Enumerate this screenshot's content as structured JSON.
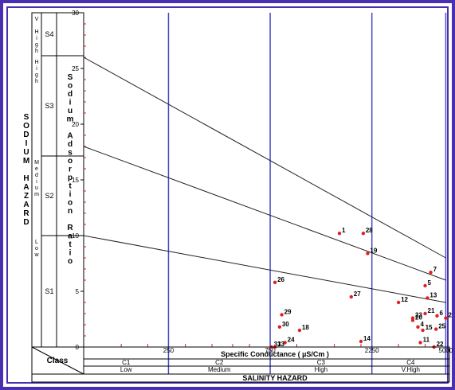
{
  "chart_data": {
    "type": "scatter",
    "title": "",
    "xlabel": "Specific Conductance ( µS/Cm )",
    "ylabel": "Sodium Adsorption Ratio",
    "x_scale": "log",
    "x_ticks": [
      250,
      750,
      2250,
      5000
    ],
    "y_ticks": [
      0,
      5,
      10,
      15,
      20,
      25,
      30
    ],
    "ylim": [
      0,
      30
    ],
    "left_axis_title": "SODIUM HAZARD",
    "bottom_axis_title": "SALINITY HAZARD",
    "class_label": "Class",
    "sodium_classes": [
      {
        "code": "S1",
        "name": "Low"
      },
      {
        "code": "S2",
        "name": "Medium"
      },
      {
        "code": "S3",
        "name": "High"
      },
      {
        "code": "S4",
        "name": "V High"
      }
    ],
    "salinity_classes": [
      {
        "code": "C1",
        "name": "Low"
      },
      {
        "code": "C2",
        "name": "Medium"
      },
      {
        "code": "C3",
        "name": "High"
      },
      {
        "code": "C4",
        "name": "V.High"
      }
    ],
    "class_boundaries": [
      {
        "from": [
          100,
          10
        ],
        "to": [
          5000,
          4
        ]
      },
      {
        "from": [
          100,
          18
        ],
        "to": [
          5000,
          6
        ]
      },
      {
        "from": [
          100,
          26
        ],
        "to": [
          5000,
          8
        ]
      }
    ],
    "samples": [
      {
        "label": "1",
        "x": 1585,
        "y": 10.2
      },
      {
        "label": "2",
        "x": 5000,
        "y": 2.6
      },
      {
        "label": "4",
        "x": 3700,
        "y": 1.8
      },
      {
        "label": "5",
        "x": 4000,
        "y": 5.5
      },
      {
        "label": "6",
        "x": 4550,
        "y": 2.8
      },
      {
        "label": "7",
        "x": 4250,
        "y": 6.7
      },
      {
        "label": "11",
        "x": 3800,
        "y": 0.4
      },
      {
        "label": "12",
        "x": 3000,
        "y": 4.0
      },
      {
        "label": "13",
        "x": 4100,
        "y": 4.4
      },
      {
        "label": "14",
        "x": 2000,
        "y": 0.5
      },
      {
        "label": "15",
        "x": 3900,
        "y": 1.5
      },
      {
        "label": "18",
        "x": 1030,
        "y": 1.5
      },
      {
        "label": "19",
        "x": 2150,
        "y": 8.4
      },
      {
        "label": "20",
        "x": 3500,
        "y": 2.4
      },
      {
        "label": "21",
        "x": 4000,
        "y": 3.0
      },
      {
        "label": "22",
        "x": 4400,
        "y": 0.0
      },
      {
        "label": "23",
        "x": 3500,
        "y": 2.6
      },
      {
        "label": "24",
        "x": 880,
        "y": 0.4
      },
      {
        "label": "25",
        "x": 4500,
        "y": 1.6
      },
      {
        "label": "26",
        "x": 790,
        "y": 5.8
      },
      {
        "label": "27",
        "x": 1800,
        "y": 4.5
      },
      {
        "label": "28",
        "x": 2050,
        "y": 10.2
      },
      {
        "label": "29",
        "x": 850,
        "y": 2.9
      },
      {
        "label": "30",
        "x": 830,
        "y": 1.8
      },
      {
        "label": "31",
        "x": 760,
        "y": 0.0
      },
      {
        "label": "33",
        "x": 790,
        "y": 0.0
      }
    ]
  }
}
